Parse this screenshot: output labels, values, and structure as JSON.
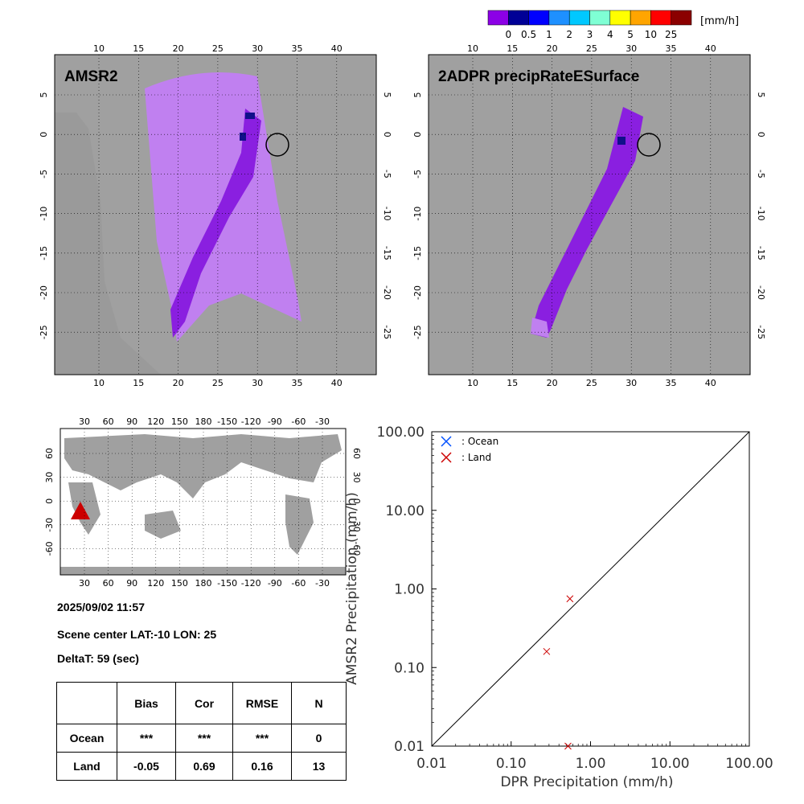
{
  "colorbar": {
    "unit": "[mm/h]",
    "colors": [
      "#8c00e6",
      "#000096",
      "#0000ff",
      "#1e90ff",
      "#00c8ff",
      "#7fffd4",
      "#ffff00",
      "#ffa500",
      "#ff0000",
      "#8b0000"
    ],
    "labels": [
      "0",
      "0.5",
      "1",
      "2",
      "3",
      "4",
      "5",
      "10",
      "25"
    ]
  },
  "map_left": {
    "title": "AMSR2",
    "lon_ticks": [
      "10",
      "15",
      "20",
      "25",
      "30",
      "35",
      "40"
    ],
    "lat_ticks": [
      "5",
      "0",
      "-5",
      "-10",
      "-15",
      "-20",
      "-25"
    ]
  },
  "map_right": {
    "title": "2ADPR precipRateESurface",
    "lon_ticks": [
      "10",
      "15",
      "20",
      "25",
      "30",
      "35",
      "40"
    ],
    "lat_ticks": [
      "5",
      "0",
      "-5",
      "-10",
      "-15",
      "-20",
      "-25"
    ]
  },
  "world_map": {
    "lon_ticks": [
      "30",
      "60",
      "90",
      "120",
      "150",
      "180",
      "-150",
      "-120",
      "-90",
      "-60",
      "-30"
    ],
    "lat_ticks": [
      "60",
      "30",
      "0",
      "-30",
      "-60"
    ],
    "marker_color": "#cc0000"
  },
  "info": {
    "datetime": "2025/09/02 11:57",
    "scene_center": "Scene center LAT:-10   LON:  25",
    "delta_t": "DeltaT:   59 (sec)"
  },
  "stats_table": {
    "headers": [
      "",
      "Bias",
      "Cor",
      "RMSE",
      "N"
    ],
    "rows": [
      [
        "Ocean",
        "***",
        "***",
        "***",
        "0"
      ],
      [
        "Land",
        "-0.05",
        "0.69",
        "0.16",
        "13"
      ]
    ]
  },
  "chart_data": {
    "type": "scatter",
    "xlabel": "DPR Precipitation (mm/h)",
    "ylabel": "AMSR2 Precipitation (mm/h)",
    "x_scale": "log",
    "y_scale": "log",
    "xlim": [
      0.01,
      100
    ],
    "ylim": [
      0.01,
      100
    ],
    "x_ticks": [
      "0.01",
      "0.10",
      "1.00",
      "10.00",
      "100.00"
    ],
    "y_ticks": [
      "100.00",
      "10.00",
      "1.00",
      "0.10",
      "0.01"
    ],
    "legend_placement": "top-left",
    "reference_line": "1:1",
    "series": [
      {
        "name": ": Ocean",
        "color": "#0050ff",
        "points": []
      },
      {
        "name": ": Land",
        "color": "#cc0000",
        "points": [
          {
            "x": 0.55,
            "y": 0.75
          },
          {
            "x": 0.28,
            "y": 0.16
          },
          {
            "x": 0.52,
            "y": 0.01
          }
        ]
      }
    ]
  }
}
